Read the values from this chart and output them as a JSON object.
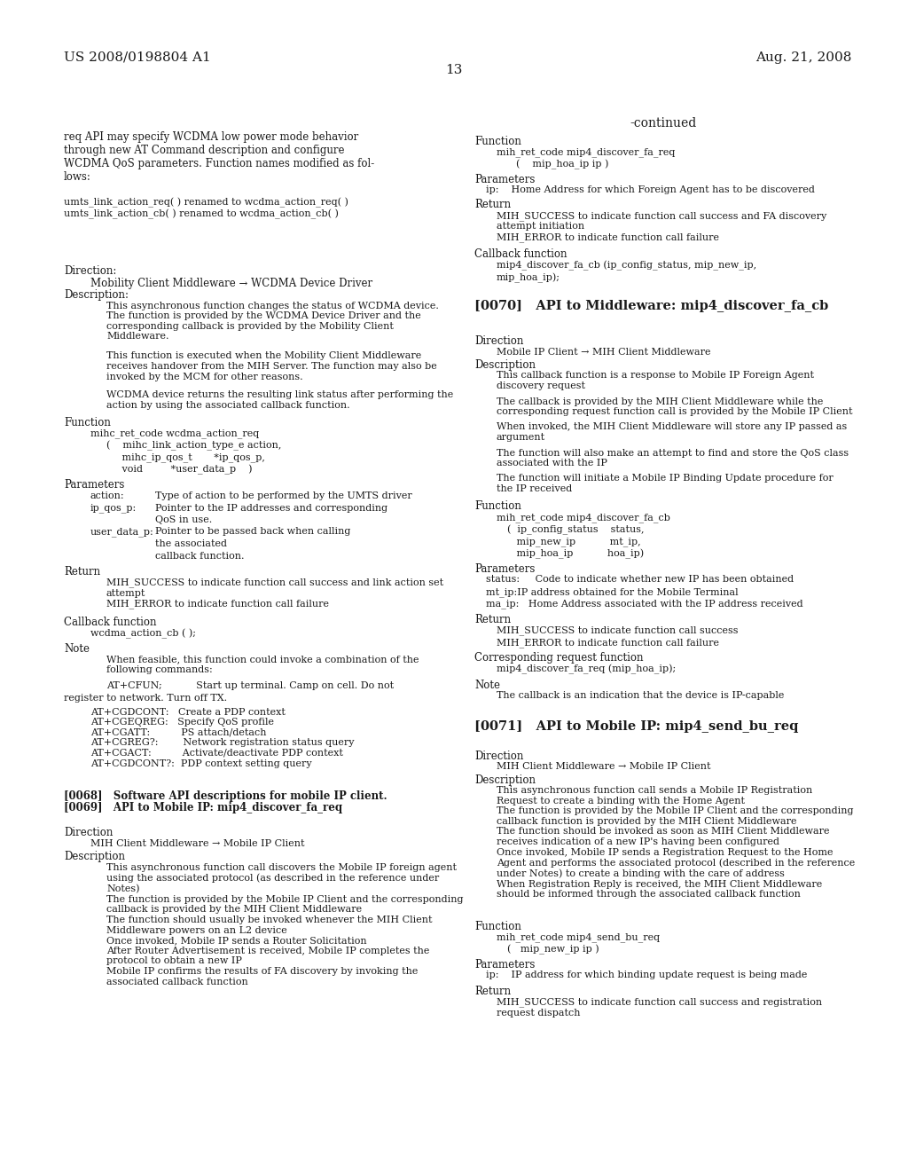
{
  "patent_number": "US 2008/0198804 A1",
  "date": "Aug. 21, 2008",
  "page_number": "13",
  "bg": "#ffffff",
  "fg": "#1a1a1a",
  "left": {
    "intro": "req API may specify WCDMA low power mode behavior\nthrough new AT Command description and configure\nWCDMA QoS parameters. Function names modified as fol-\nlows:",
    "renamed": "umts_link_action_req( ) renamed to wcdma_action_req( )\numts_link_action_cb( ) renamed to wcdma_action_cb( )",
    "direction_label": "Direction:",
    "direction_val": "Mobility Client Middleware → WCDMA Device Driver",
    "description_label": "Description:",
    "desc1": "This asynchronous function changes the status of WCDMA device.\nThe function is provided by the WCDMA Device Driver and the\ncorresponding callback is provided by the Mobility Client\nMiddleware.",
    "desc2": "This function is executed when the Mobility Client Middleware\nreceives handover from the MIH Server. The function may also be\ninvoked by the MCM for other reasons.",
    "desc3": "WCDMA device returns the resulting link status after performing the\naction by using the associated callback function.",
    "func_label": "Function",
    "func1": "mihc_ret_code wcdma_action_req",
    "func2a": "(    mihc_link_action_type_e action,",
    "func2b": "     mihc_ip_qos_t       *ip_qos_p,",
    "func2c": "     void         *user_data_p    )",
    "params_label": "Parameters",
    "p1a": "action:",
    "p1b": "Type of action to be performed by the UMTS driver",
    "p2a": "ip_qos_p:",
    "p2b": "Pointer to the IP addresses and corresponding",
    "p2c": "QoS in use.",
    "p3a": "user_data_p:",
    "p3b": "Pointer to be passed back when calling",
    "p3c": "the associated",
    "p3d": "callback function.",
    "return_label": "Return",
    "ret1": "MIH_SUCCESS to indicate function call success and link action set\nattempt\nMIH_ERROR to indicate function call failure",
    "cb_label": "Callback function",
    "cb1": "wcdma_action_cb ( );",
    "note_label": "Note",
    "note1": "When feasible, this function could invoke a combination of the\nfollowing commands:",
    "note2a": "AT+CFUN;           Start up terminal. Camp on cell. Do not",
    "note2b": "register to network. Turn off TX.",
    "note3": "AT+CGDCONT:   Create a PDP context\nAT+CGEQREG:   Specify QoS profile\nAT+CGATT:          PS attach/detach\nAT+CGREG?:        Network registration status query\nAT+CGACT:          Activate/deactivate PDP context\nAT+CGDCONT?:  PDP context setting query",
    "sec0068": "[0068]   Software API descriptions for mobile IP client.",
    "sec0069": "[0069]   API to Mobile IP: mip4_discover_fa_req",
    "dir2_label": "Direction",
    "dir2_val": "MIH Client Middleware → Mobile IP Client",
    "desc2_label": "Description",
    "desc_0069": "This asynchronous function call discovers the Mobile IP foreign agent\nusing the associated protocol (as described in the reference under\nNotes)\nThe function is provided by the Mobile IP Client and the corresponding\ncallback is provided by the MIH Client Middleware\nThe function should usually be invoked whenever the MIH Client\nMiddleware powers on an L2 device\nOnce invoked, Mobile IP sends a Router Solicitation\nAfter Router Advertisement is received, Mobile IP completes the\nprotocol to obtain a new IP\nMobile IP confirms the results of FA discovery by invoking the\nassociated callback function"
  },
  "right": {
    "continued": "-continued",
    "func_label": "Function",
    "func_r1": "mih_ret_code mip4_discover_fa_req",
    "func_r2": "(    mip_hoa_ip ip )",
    "params_label": "Parameters",
    "p_r1": "ip:    Home Address for which Foreign Agent has to be discovered",
    "return_label": "Return",
    "ret_r1": "MIH_SUCCESS to indicate function call success and FA discovery\nattempt initiation\nMIH_ERROR to indicate function call failure",
    "cb_label": "Callback function",
    "cb_r1": "mip4_discover_fa_cb (ip_config_status, mip_new_ip,",
    "cb_r2": "mip_hoa_ip);",
    "sec0070": "[0070]   API to Middleware: mip4_discover_fa_cb",
    "dir0070_label": "Direction",
    "dir0070_val": "Mobile IP Client → MIH Client Middleware",
    "desc0070_label": "Description",
    "desc_0070a": "This callback function is a response to Mobile IP Foreign Agent\ndiscovery request",
    "desc_0070b": "The callback is provided by the MIH Client Middleware while the\ncorresponding request function call is provided by the Mobile IP Client",
    "desc_0070c": "When invoked, the MIH Client Middleware will store any IP passed as\nargument",
    "desc_0070d": "The function will also make an attempt to find and store the QoS class\nassociated with the IP",
    "desc_0070e": "The function will initiate a Mobile IP Binding Update procedure for\nthe IP received",
    "func0070_label": "Function",
    "func0070a": "mih_ret_code mip4_discover_fa_cb",
    "func0070b": "(  ip_config_status    status,",
    "func0070c": "   mip_new_ip           mt_ip,",
    "func0070d": "   mip_hoa_ip           hoa_ip)",
    "params0070_label": "Parameters",
    "pp0070a": "status:     Code to indicate whether new IP has been obtained",
    "pp0070b": "mt_ip:IP address obtained for the Mobile Terminal",
    "pp0070c": "ma_ip:   Home Address associated with the IP address received",
    "ret0070_label": "Return",
    "ret0070a": "MIH_SUCCESS to indicate function call success",
    "ret0070b": "MIH_ERROR to indicate function call failure",
    "corr_label": "Corresponding request function",
    "corr_val": "mip4_discover_fa_req (mip_hoa_ip);",
    "note0070_label": "Note",
    "note0070_val": "The callback is an indication that the device is IP-capable",
    "sec0071": "[0071]   API to Mobile IP: mip4_send_bu_req",
    "dir0071_label": "Direction",
    "dir0071_val": "MIH Client Middleware → Mobile IP Client",
    "desc0071_label": "Description",
    "desc_0071": "This asynchronous function call sends a Mobile IP Registration\nRequest to create a binding with the Home Agent\nThe function is provided by the Mobile IP Client and the corresponding\ncallback function is provided by the MIH Client Middleware\nThe function should be invoked as soon as MIH Client Middleware\nreceives indication of a new IP's having been configured\nOnce invoked, Mobile IP sends a Registration Request to the Home\nAgent and performs the associated protocol (described in the reference\nunder Notes) to create a binding with the care of address\nWhen Registration Reply is received, the MIH Client Middleware\nshould be informed through the associated callback function",
    "func0071_label": "Function",
    "func0071a": "mih_ret_code mip4_send_bu_req",
    "func0071b": "(   mip_new_ip ip )",
    "params0071_label": "Parameters",
    "pp0071": "ip:    IP address for which binding update request is being made",
    "ret0071_label": "Return",
    "ret0071": "MIH_SUCCESS to indicate function call success and registration\nrequest dispatch"
  }
}
